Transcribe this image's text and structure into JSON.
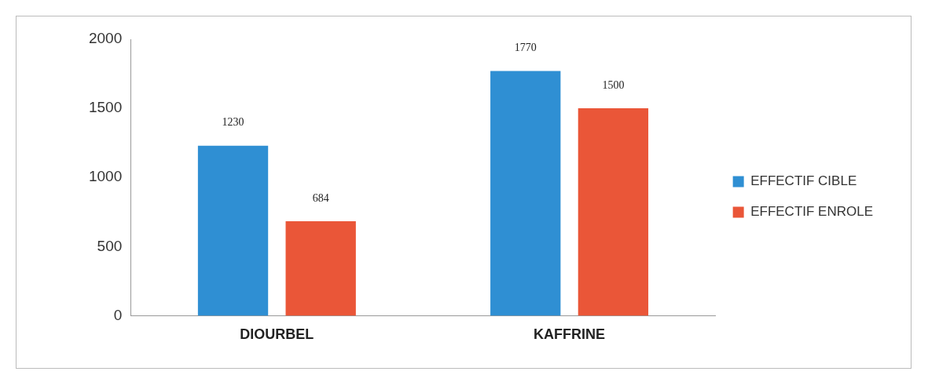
{
  "chart_data": {
    "type": "bar",
    "categories": [
      "DIOURBEL",
      "KAFFRINE"
    ],
    "series": [
      {
        "name": "EFFECTIF CIBLE",
        "color": "#2f8fd3",
        "values": [
          1230,
          1770
        ]
      },
      {
        "name": "EFFECTIF ENROLE",
        "color": "#ea5638",
        "values": [
          684,
          1500
        ]
      }
    ],
    "ylim": [
      0,
      2000
    ],
    "yticks": [
      0,
      500,
      1000,
      1500,
      2000
    ],
    "grid": false,
    "legend": "right",
    "data_labels": true
  }
}
